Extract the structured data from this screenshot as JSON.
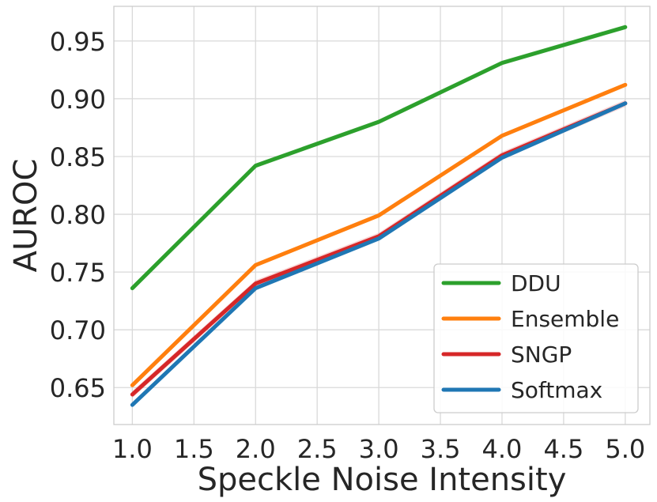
{
  "chart_data": {
    "type": "line",
    "title": "",
    "xlabel": "Speckle Noise Intensity",
    "ylabel": "AUROC",
    "x": [
      1.0,
      2.0,
      3.0,
      4.0,
      5.0
    ],
    "xlim": [
      0.85,
      5.2
    ],
    "ylim": [
      0.618,
      0.98
    ],
    "xticks": [
      1.0,
      1.5,
      2.0,
      2.5,
      3.0,
      3.5,
      4.0,
      4.5,
      5.0
    ],
    "xtick_labels": [
      "1.0",
      "1.5",
      "2.0",
      "2.5",
      "3.0",
      "3.5",
      "4.0",
      "4.5",
      "5.0"
    ],
    "yticks": [
      0.65,
      0.7,
      0.75,
      0.8,
      0.85,
      0.9,
      0.95
    ],
    "ytick_labels": [
      "0.65",
      "0.70",
      "0.75",
      "0.80",
      "0.85",
      "0.90",
      "0.95"
    ],
    "grid": true,
    "legend_position": "bottom-right",
    "series": [
      {
        "name": "DDU",
        "color": "#2ca02c",
        "values": [
          0.736,
          0.842,
          0.88,
          0.931,
          0.962
        ],
        "band": 0.002
      },
      {
        "name": "Ensemble",
        "color": "#ff7f0e",
        "values": [
          0.652,
          0.756,
          0.799,
          0.868,
          0.912
        ],
        "band": 0.001
      },
      {
        "name": "SNGP",
        "color": "#d62728",
        "values": [
          0.644,
          0.74,
          0.781,
          0.851,
          0.896
        ],
        "band": 0.003
      },
      {
        "name": "Softmax",
        "color": "#1f77b4",
        "values": [
          0.635,
          0.736,
          0.779,
          0.849,
          0.896
        ],
        "band": 0.002
      }
    ]
  }
}
